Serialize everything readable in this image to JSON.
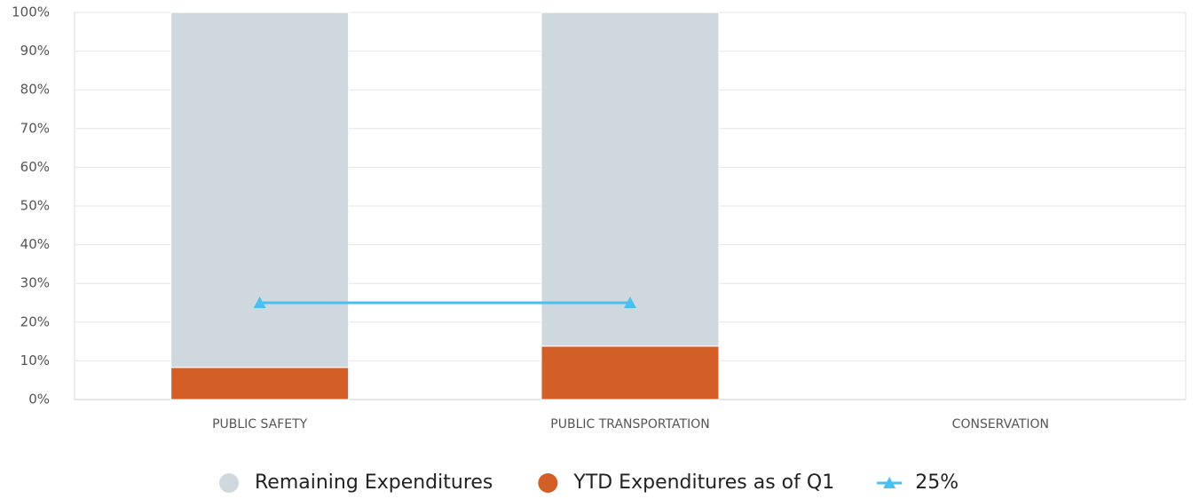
{
  "chart_data": {
    "type": "bar",
    "stacked": true,
    "categories": [
      "PUBLIC SAFETY",
      "PUBLIC TRANSPORTATION",
      "CONSERVATION"
    ],
    "series": [
      {
        "name": "YTD Expenditures as of Q1",
        "type": "bar",
        "color": "#d35f27",
        "values": [
          8.3,
          13.8,
          null
        ]
      },
      {
        "name": "Remaining Expenditures",
        "type": "bar",
        "color": "#cfd8de",
        "values": [
          91.7,
          86.2,
          null
        ]
      },
      {
        "name": "25%",
        "type": "line",
        "color": "#4bbfef",
        "values": [
          25,
          25,
          null
        ]
      }
    ],
    "legend_order": [
      1,
      0,
      2
    ],
    "ylim": [
      0,
      100
    ],
    "yticks": [
      {
        "value": 0,
        "label": "0%"
      },
      {
        "value": 10,
        "label": "10%"
      },
      {
        "value": 20,
        "label": "20%"
      },
      {
        "value": 30,
        "label": "30%"
      },
      {
        "value": 40,
        "label": "40%"
      },
      {
        "value": 50,
        "label": "50%"
      },
      {
        "value": 60,
        "label": "60%"
      },
      {
        "value": 70,
        "label": "70%"
      },
      {
        "value": 80,
        "label": "80%"
      },
      {
        "value": 90,
        "label": "90%"
      },
      {
        "value": 100,
        "label": "100%"
      }
    ],
    "grid": true,
    "legend": "bottom"
  }
}
